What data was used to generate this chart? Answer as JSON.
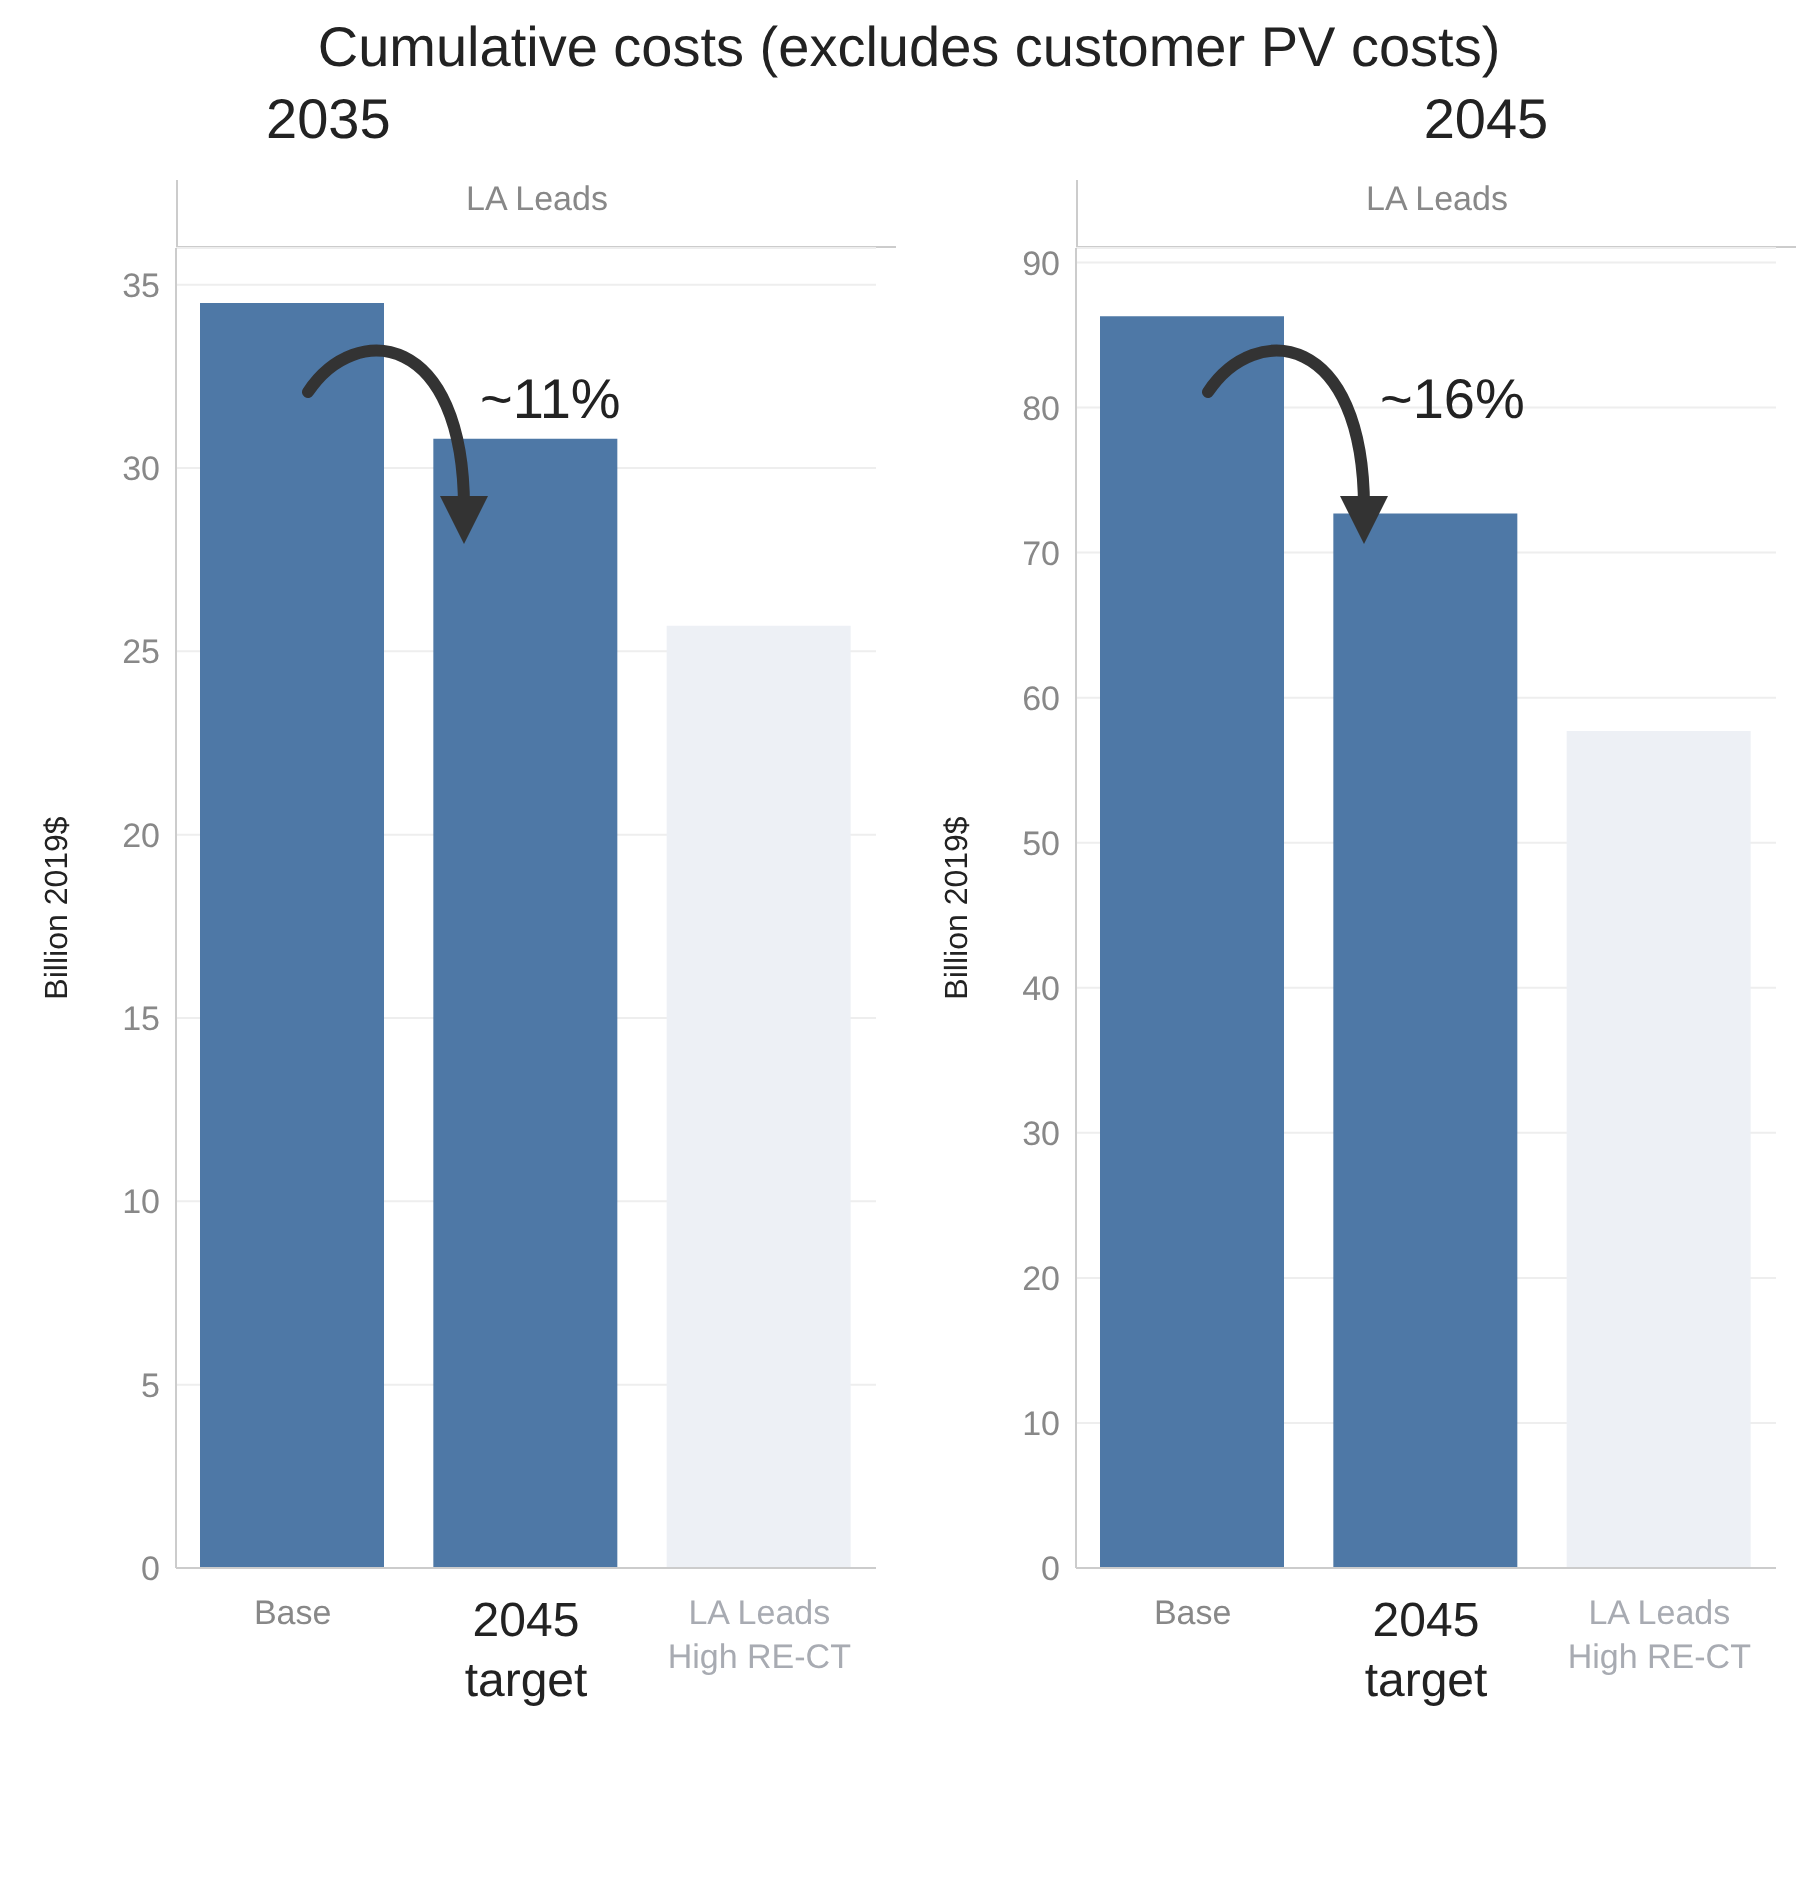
{
  "chart_data": [
    {
      "type": "bar",
      "title": "Cumulative costs (excludes customer PV costs)",
      "subtitle": "2035",
      "ylabel": "Billion 2019$",
      "annotations": [
        "LA Leads",
        "~11%"
      ],
      "categories": [
        "Base",
        "2045 target",
        "LA Leads High RE-CT"
      ],
      "values": [
        34.5,
        30.8,
        25.7
      ],
      "colors": [
        "#4e78a6",
        "#4e78a6",
        "#edf0f5"
      ],
      "ylim": [
        0,
        36
      ],
      "yticks": [
        0,
        5,
        10,
        15,
        20,
        25,
        30,
        35
      ],
      "grid": "y"
    },
    {
      "type": "bar",
      "subtitle": "2045",
      "ylabel": "Billion 2019$",
      "annotations": [
        "LA Leads",
        "~16%"
      ],
      "categories": [
        "Base",
        "2045 target",
        "LA Leads High RE-CT"
      ],
      "values": [
        86.3,
        72.7,
        57.7
      ],
      "colors": [
        "#4e78a6",
        "#4e78a6",
        "#edf0f5"
      ],
      "ylim": [
        0,
        91
      ],
      "yticks": [
        0,
        10,
        20,
        30,
        40,
        50,
        60,
        70,
        80,
        90
      ],
      "grid": "y"
    }
  ]
}
